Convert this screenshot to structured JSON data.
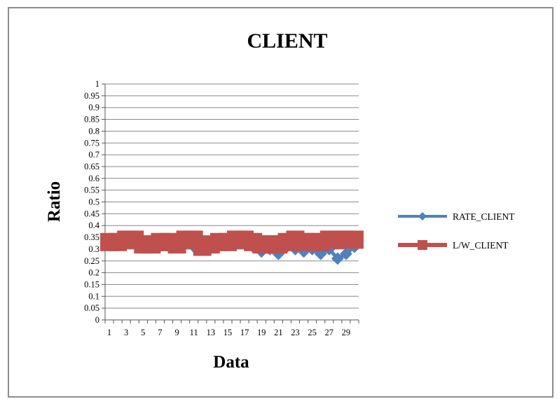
{
  "chart_data": {
    "type": "line",
    "title": "CLIENT",
    "xlabel": "Data",
    "ylabel": "Ratio",
    "ylim": [
      0,
      1
    ],
    "ytick_step": 0.05,
    "x": [
      1,
      2,
      3,
      4,
      5,
      6,
      7,
      8,
      9,
      10,
      11,
      12,
      13,
      14,
      15,
      16,
      17,
      18,
      19,
      20,
      21,
      22,
      23,
      24,
      25,
      26,
      27,
      28,
      29,
      30
    ],
    "x_tick_labels": [
      "1",
      "3",
      "5",
      "7",
      "9",
      "11",
      "13",
      "15",
      "17",
      "19",
      "21",
      "23",
      "25",
      "27",
      "29"
    ],
    "y_tick_labels": [
      "0",
      "0.05",
      "0.1",
      "0.15",
      "0.2",
      "0.25",
      "0.3",
      "0.35",
      "0.4",
      "0.45",
      "0.5",
      "0.55",
      "0.6",
      "0.65",
      "0.7",
      "0.75",
      "0.8",
      "0.85",
      "0.9",
      "0.95",
      "1"
    ],
    "grid": "horizontal",
    "legend_position": "right",
    "series": [
      {
        "name": "RATE_CLIENT",
        "color": "#4f81bd",
        "marker": "diamond",
        "values": [
          0.33,
          0.33,
          0.34,
          0.33,
          0.32,
          0.32,
          0.33,
          0.32,
          0.32,
          0.33,
          0.31,
          0.31,
          0.32,
          0.33,
          0.33,
          0.34,
          0.33,
          0.31,
          0.29,
          0.3,
          0.28,
          0.31,
          0.3,
          0.29,
          0.3,
          0.28,
          0.3,
          0.26,
          0.28,
          0.31
        ]
      },
      {
        "name": "L/W_CLIENT",
        "color": "#c0504d",
        "marker": "square",
        "values": [
          0.33,
          0.33,
          0.34,
          0.34,
          0.32,
          0.32,
          0.33,
          0.33,
          0.32,
          0.34,
          0.34,
          0.31,
          0.32,
          0.33,
          0.33,
          0.34,
          0.34,
          0.33,
          0.32,
          0.32,
          0.32,
          0.33,
          0.34,
          0.33,
          0.33,
          0.33,
          0.34,
          0.34,
          0.34,
          0.34
        ]
      }
    ]
  }
}
